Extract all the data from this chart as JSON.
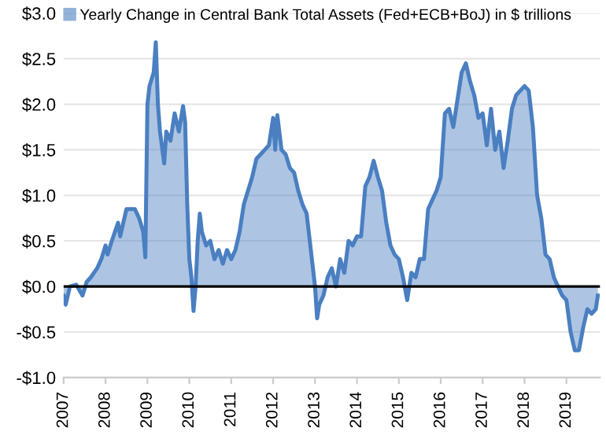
{
  "chart_data": {
    "type": "area",
    "legend": "top left",
    "grid": "y",
    "x": [
      2007.0,
      2007.05,
      2007.15,
      2007.3,
      2007.45,
      2007.55,
      2007.65,
      2007.8,
      2007.9,
      2008.0,
      2008.05,
      2008.15,
      2008.3,
      2008.35,
      2008.5,
      2008.7,
      2008.8,
      2008.9,
      2008.95,
      2009.0,
      2009.05,
      2009.15,
      2009.2,
      2009.25,
      2009.3,
      2009.4,
      2009.45,
      2009.55,
      2009.65,
      2009.75,
      2009.85,
      2009.9,
      2009.95,
      2010.0,
      2010.05,
      2010.1,
      2010.15,
      2010.2,
      2010.25,
      2010.3,
      2010.4,
      2010.5,
      2010.6,
      2010.7,
      2010.8,
      2010.9,
      2011.0,
      2011.1,
      2011.2,
      2011.3,
      2011.4,
      2011.5,
      2011.6,
      2011.7,
      2011.8,
      2011.9,
      2012.0,
      2012.05,
      2012.1,
      2012.2,
      2012.3,
      2012.4,
      2012.5,
      2012.6,
      2012.7,
      2012.8,
      2012.9,
      2013.0,
      2013.05,
      2013.1,
      2013.2,
      2013.3,
      2013.4,
      2013.5,
      2013.6,
      2013.7,
      2013.8,
      2013.9,
      2014.0,
      2014.1,
      2014.2,
      2014.3,
      2014.4,
      2014.5,
      2014.6,
      2014.7,
      2014.8,
      2014.9,
      2015.0,
      2015.1,
      2015.2,
      2015.3,
      2015.4,
      2015.5,
      2015.6,
      2015.7,
      2015.8,
      2015.9,
      2016.0,
      2016.1,
      2016.2,
      2016.3,
      2016.4,
      2016.5,
      2016.6,
      2016.7,
      2016.8,
      2016.9,
      2017.0,
      2017.1,
      2017.2,
      2017.3,
      2017.4,
      2017.5,
      2017.6,
      2017.7,
      2017.8,
      2018.0,
      2018.1,
      2018.2,
      2018.3,
      2018.4,
      2018.5,
      2018.6,
      2018.7,
      2018.8,
      2018.9,
      2019.0,
      2019.1,
      2019.2,
      2019.3,
      2019.4,
      2019.5,
      2019.6,
      2019.7,
      2019.75
    ],
    "series": [
      {
        "name": "Yearly Change in Central Bank Total Assets (Fed+ECB+BoJ) in $ trillions",
        "color": "#4a7fc1",
        "values": [
          -0.1,
          -0.2,
          0.0,
          0.02,
          -0.1,
          0.05,
          0.1,
          0.2,
          0.3,
          0.45,
          0.35,
          0.5,
          0.7,
          0.55,
          0.85,
          0.85,
          0.75,
          0.6,
          0.32,
          2.0,
          2.2,
          2.35,
          2.68,
          2.0,
          1.7,
          1.35,
          1.7,
          1.6,
          1.9,
          1.7,
          1.98,
          1.8,
          0.9,
          0.3,
          0.1,
          -0.27,
          0.0,
          0.5,
          0.8,
          0.6,
          0.45,
          0.5,
          0.3,
          0.4,
          0.25,
          0.4,
          0.3,
          0.4,
          0.6,
          0.9,
          1.05,
          1.2,
          1.4,
          1.45,
          1.5,
          1.55,
          1.85,
          1.5,
          1.88,
          1.5,
          1.45,
          1.3,
          1.25,
          1.05,
          0.9,
          0.8,
          0.4,
          0.0,
          -0.35,
          -0.2,
          -0.1,
          0.1,
          0.2,
          0.0,
          0.3,
          0.15,
          0.5,
          0.45,
          0.55,
          0.55,
          1.1,
          1.2,
          1.38,
          1.2,
          1.05,
          0.7,
          0.45,
          0.35,
          0.3,
          0.1,
          -0.15,
          0.15,
          0.1,
          0.3,
          0.3,
          0.85,
          0.95,
          1.05,
          1.2,
          1.9,
          1.95,
          1.75,
          2.05,
          2.35,
          2.45,
          2.25,
          2.1,
          1.85,
          1.9,
          1.55,
          1.95,
          1.5,
          1.7,
          1.3,
          1.6,
          1.95,
          2.1,
          2.2,
          2.15,
          1.75,
          1.0,
          0.75,
          0.35,
          0.3,
          0.1,
          0.0,
          -0.1,
          -0.15,
          -0.5,
          -0.7,
          -0.7,
          -0.45,
          -0.25,
          -0.3,
          -0.25,
          -0.1
        ]
      }
    ],
    "xlim": [
      2007,
      2019.8
    ],
    "xticks": [
      2007,
      2008,
      2009,
      2010,
      2011,
      2012,
      2013,
      2014,
      2015,
      2016,
      2017,
      2018,
      2019
    ],
    "ylim": [
      -1,
      3
    ],
    "yticks": [
      {
        "value": -1,
        "label": "-$1.0"
      },
      {
        "value": -0.5,
        "label": "-$0.5"
      },
      {
        "value": 0,
        "label": "$0.0"
      },
      {
        "value": 0.5,
        "label": "$0.5"
      },
      {
        "value": 1,
        "label": "$1.0"
      },
      {
        "value": 1.5,
        "label": "$1.5"
      },
      {
        "value": 2,
        "label": "$2.0"
      },
      {
        "value": 2.5,
        "label": "$2.5"
      },
      {
        "value": 3,
        "label": "$3.0"
      }
    ],
    "ref_lines": [
      {
        "axis": "y",
        "value": 0,
        "color": "#000000"
      }
    ]
  }
}
